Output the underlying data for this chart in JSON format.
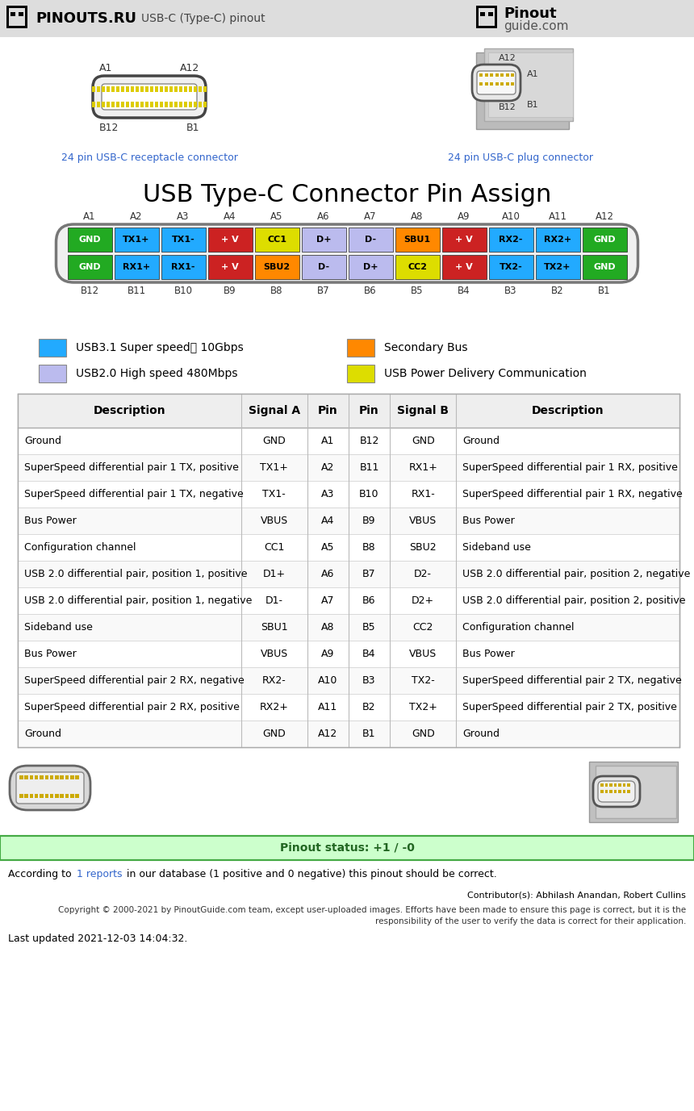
{
  "title_main": "USB Type-C Connector Pin Assign",
  "bg_color": "#eeeeee",
  "white_bg": "#ffffff",
  "pin_rows": {
    "top_labels": [
      "A1",
      "A2",
      "A3",
      "A4",
      "A5",
      "A6",
      "A7",
      "A8",
      "A9",
      "A10",
      "A11",
      "A12"
    ],
    "bottom_labels": [
      "B12",
      "B11",
      "B10",
      "B9",
      "B8",
      "B7",
      "B6",
      "B5",
      "B4",
      "B3",
      "B2",
      "B1"
    ],
    "top_pins": [
      {
        "label": "GND",
        "color": "#22aa22",
        "text_color": "#ffffff"
      },
      {
        "label": "TX1+",
        "color": "#22aaff",
        "text_color": "#000000"
      },
      {
        "label": "TX1-",
        "color": "#22aaff",
        "text_color": "#000000"
      },
      {
        "label": "+ V",
        "color": "#cc2222",
        "text_color": "#ffffff"
      },
      {
        "label": "CC1",
        "color": "#dddd00",
        "text_color": "#000000"
      },
      {
        "label": "D+",
        "color": "#bbbbee",
        "text_color": "#000000"
      },
      {
        "label": "D-",
        "color": "#bbbbee",
        "text_color": "#000000"
      },
      {
        "label": "SBU1",
        "color": "#ff8800",
        "text_color": "#000000"
      },
      {
        "label": "+ V",
        "color": "#cc2222",
        "text_color": "#ffffff"
      },
      {
        "label": "RX2-",
        "color": "#22aaff",
        "text_color": "#000000"
      },
      {
        "label": "RX2+",
        "color": "#22aaff",
        "text_color": "#000000"
      },
      {
        "label": "GND",
        "color": "#22aa22",
        "text_color": "#ffffff"
      }
    ],
    "bottom_pins": [
      {
        "label": "GND",
        "color": "#22aa22",
        "text_color": "#ffffff"
      },
      {
        "label": "RX1+",
        "color": "#22aaff",
        "text_color": "#000000"
      },
      {
        "label": "RX1-",
        "color": "#22aaff",
        "text_color": "#000000"
      },
      {
        "label": "+ V",
        "color": "#cc2222",
        "text_color": "#ffffff"
      },
      {
        "label": "SBU2",
        "color": "#ff8800",
        "text_color": "#000000"
      },
      {
        "label": "D-",
        "color": "#bbbbee",
        "text_color": "#000000"
      },
      {
        "label": "D+",
        "color": "#bbbbee",
        "text_color": "#000000"
      },
      {
        "label": "CC2",
        "color": "#dddd00",
        "text_color": "#000000"
      },
      {
        "label": "+ V",
        "color": "#cc2222",
        "text_color": "#ffffff"
      },
      {
        "label": "TX2-",
        "color": "#22aaff",
        "text_color": "#000000"
      },
      {
        "label": "TX2+",
        "color": "#22aaff",
        "text_color": "#000000"
      },
      {
        "label": "GND",
        "color": "#22aa22",
        "text_color": "#ffffff"
      }
    ]
  },
  "legend": [
    {
      "color": "#22aaff",
      "label": "USB3.1 Super speed➕ 10Gbps"
    },
    {
      "color": "#bbbbee",
      "label": "USB2.0 High speed 480Mbps"
    },
    {
      "color": "#ff8800",
      "label": "Secondary Bus"
    },
    {
      "color": "#dddd00",
      "label": "USB Power Delivery Communication"
    }
  ],
  "table_headers": [
    "Description",
    "Signal A",
    "Pin",
    "Pin",
    "Signal B",
    "Description"
  ],
  "table_rows": [
    [
      "Ground",
      "GND",
      "A1",
      "B12",
      "GND",
      "Ground"
    ],
    [
      "SuperSpeed differential pair 1 TX, positive",
      "TX1+",
      "A2",
      "B11",
      "RX1+",
      "SuperSpeed differential pair 1 RX, positive"
    ],
    [
      "SuperSpeed differential pair 1 TX, negative",
      "TX1-",
      "A3",
      "B10",
      "RX1-",
      "SuperSpeed differential pair 1 RX, negative"
    ],
    [
      "Bus Power",
      "VBUS",
      "A4",
      "B9",
      "VBUS",
      "Bus Power"
    ],
    [
      "Configuration channel",
      "CC1",
      "A5",
      "B8",
      "SBU2",
      "Sideband use"
    ],
    [
      "USB 2.0 differential pair, position 1, positive",
      "D1+",
      "A6",
      "B7",
      "D2-",
      "USB 2.0 differential pair, position 2, negative"
    ],
    [
      "USB 2.0 differential pair, position 1, negative",
      "D1-",
      "A7",
      "B6",
      "D2+",
      "USB 2.0 differential pair, position 2, positive"
    ],
    [
      "Sideband use",
      "SBU1",
      "A8",
      "B5",
      "CC2",
      "Configuration channel"
    ],
    [
      "Bus Power",
      "VBUS",
      "A9",
      "B4",
      "VBUS",
      "Bus Power"
    ],
    [
      "SuperSpeed differential pair 2 RX, negative",
      "RX2-",
      "A10",
      "B3",
      "TX2-",
      "SuperSpeed differential pair 2 TX, negative"
    ],
    [
      "SuperSpeed differential pair 2 RX, positive",
      "RX2+",
      "A11",
      "B2",
      "TX2+",
      "SuperSpeed differential pair 2 TX, positive"
    ],
    [
      "Ground",
      "GND",
      "A12",
      "B1",
      "GND",
      "Ground"
    ]
  ],
  "footer_status": "Pinout status: +1 / -0",
  "footer_text2": "Contributor(s): Abhilash Anandan, Robert Cullins",
  "footer_text3a": "Copyright © 2000-2021 by PinoutGuide.com team, except user-uploaded images. Efforts have been made to ensure this page is correct, but it is the",
  "footer_text3b": "responsibility of the user to verify the data is correct for their application.",
  "footer_text4": "Last updated 2021-12-03 14:04:32.",
  "link_color": "#3366cc",
  "green_bar_color": "#226622",
  "status_bg": "#ccffcc",
  "status_border": "#44aa44",
  "header_bg": "#dddddd"
}
